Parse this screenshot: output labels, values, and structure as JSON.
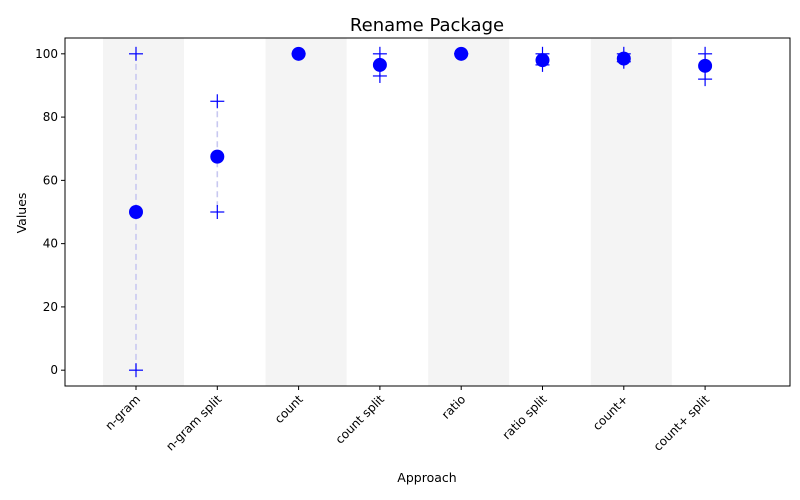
{
  "chart_data": {
    "type": "scatter",
    "title": "Rename Package",
    "xlabel": "Approach",
    "ylabel": "Values",
    "categories": [
      "n-gram",
      "n-gram split",
      "count",
      "count split",
      "ratio",
      "ratio split",
      "count+",
      "count+ split"
    ],
    "mean": [
      50,
      67.5,
      100,
      96.5,
      100,
      98,
      98.5,
      96.2
    ],
    "max": [
      100,
      85,
      100,
      100,
      100,
      100,
      100,
      100
    ],
    "min": [
      0,
      50,
      100,
      93,
      100,
      96.5,
      97.5,
      92
    ],
    "ylim": [
      -5,
      105
    ],
    "yticks": [
      0,
      20,
      40,
      60,
      80,
      100
    ],
    "shaded_categories": [
      0,
      2,
      4,
      6
    ],
    "grid": false,
    "colors": {
      "marker": "#0000ff",
      "range_line": "#c8c8f0",
      "band": "#f4f4f4"
    }
  }
}
